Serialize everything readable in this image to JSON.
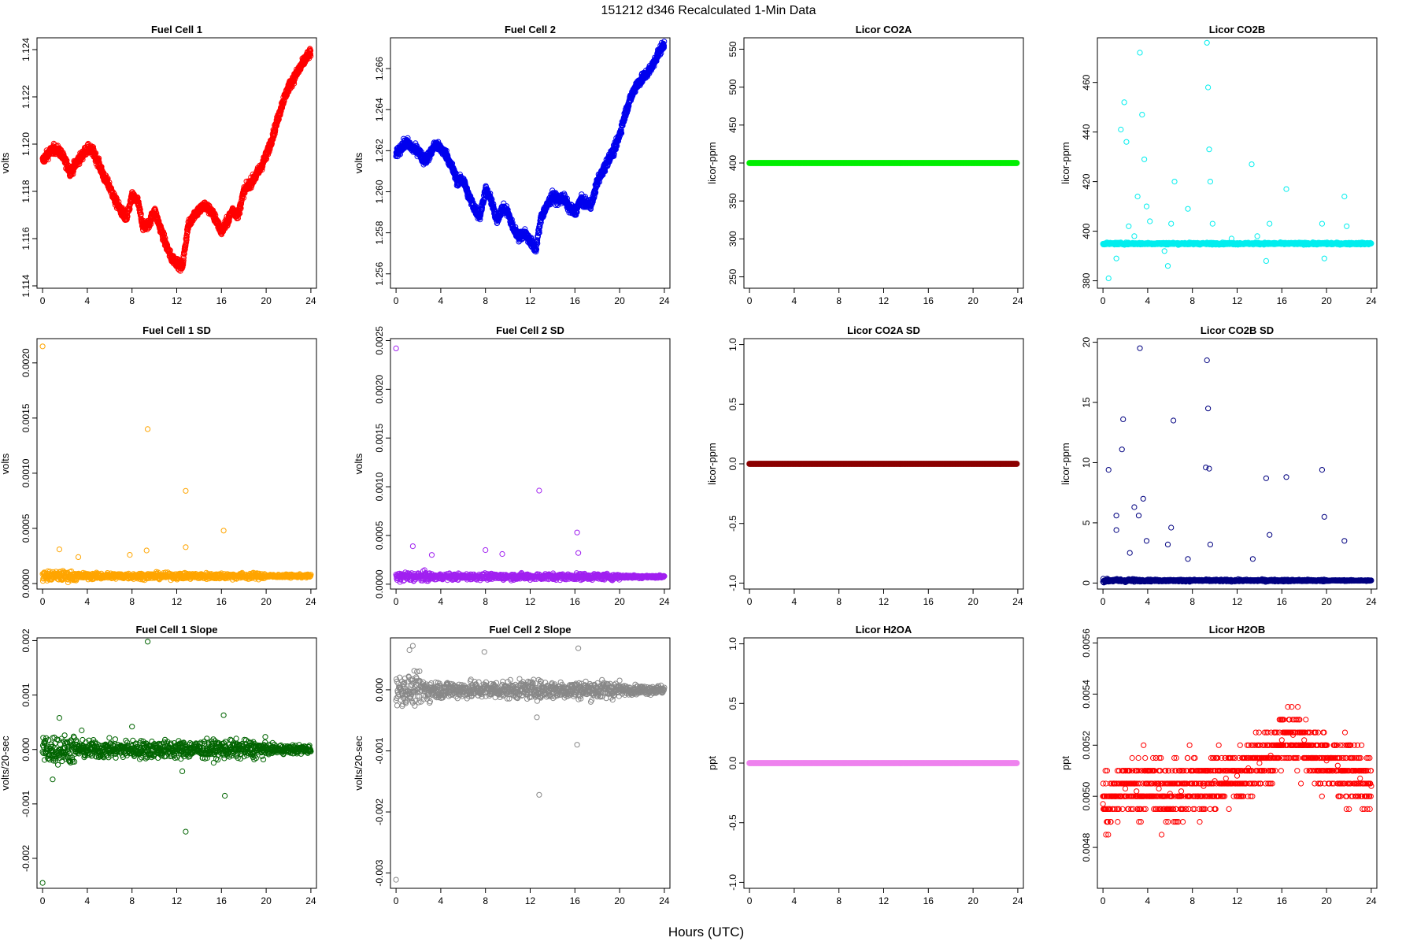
{
  "figure": {
    "title": "151212   d346   Recalculated 1-Min Data",
    "xlabel": "Hours (UTC)"
  },
  "chart_data": [
    {
      "type": "scatter",
      "title": "Fuel Cell 1",
      "ylabel": "volts",
      "color": "#ff0000",
      "xlim": [
        -0.5,
        24.5
      ],
      "xticks": [
        0,
        4,
        8,
        12,
        16,
        20,
        24
      ],
      "ylim": [
        1.1139,
        1.1245
      ],
      "yticks": [
        1.114,
        1.116,
        1.118,
        1.12,
        1.122,
        1.124
      ],
      "ytick_labels": [
        "1.114",
        "1.116",
        "1.118",
        "1.120",
        "1.122",
        "1.124"
      ],
      "x": [
        0,
        0.5,
        1,
        1.5,
        2,
        2.5,
        3,
        3.5,
        4,
        4.5,
        5,
        5.5,
        6,
        6.5,
        7,
        7.5,
        8,
        8.5,
        9,
        9.5,
        10,
        10.5,
        11,
        11.5,
        12,
        12.5,
        13,
        13.5,
        14,
        14.5,
        15,
        15.5,
        16,
        16.5,
        17,
        17.5,
        18,
        18.5,
        19,
        19.5,
        20,
        20.5,
        21,
        21.5,
        22,
        22.5,
        23,
        23.5,
        24
      ],
      "y": [
        1.1193,
        1.1196,
        1.1198,
        1.1197,
        1.1193,
        1.1188,
        1.1192,
        1.1195,
        1.1198,
        1.1197,
        1.1192,
        1.1186,
        1.1182,
        1.1176,
        1.1172,
        1.1168,
        1.1178,
        1.1176,
        1.1165,
        1.1166,
        1.1172,
        1.1165,
        1.1158,
        1.1152,
        1.115,
        1.1148,
        1.1165,
        1.117,
        1.1172,
        1.1174,
        1.1172,
        1.1168,
        1.1163,
        1.1167,
        1.1172,
        1.117,
        1.118,
        1.1183,
        1.1186,
        1.119,
        1.1195,
        1.1202,
        1.121,
        1.1218,
        1.1224,
        1.1228,
        1.1232,
        1.1236,
        1.1239
      ]
    },
    {
      "type": "scatter",
      "title": "Fuel Cell 2",
      "ylabel": "volts",
      "color": "#0000ee",
      "xlim": [
        -0.5,
        24.5
      ],
      "xticks": [
        0,
        4,
        8,
        12,
        16,
        20,
        24
      ],
      "ylim": [
        1.2553,
        1.2675
      ],
      "yticks": [
        1.256,
        1.258,
        1.26,
        1.262,
        1.264,
        1.266
      ],
      "ytick_labels": [
        "1.256",
        "1.258",
        "1.260",
        "1.262",
        "1.264",
        "1.266"
      ],
      "x": [
        0,
        0.5,
        1,
        1.5,
        2,
        2.5,
        3,
        3.5,
        4,
        4.5,
        5,
        5.5,
        6,
        6.5,
        7,
        7.5,
        8,
        8.5,
        9,
        9.5,
        10,
        10.5,
        11,
        11.5,
        12,
        12.5,
        13,
        13.5,
        14,
        14.5,
        15,
        15.5,
        16,
        16.5,
        17,
        17.5,
        18,
        18.5,
        19,
        19.5,
        20,
        20.5,
        21,
        21.5,
        22,
        22.5,
        23,
        23.5,
        24
      ],
      "y": [
        1.2618,
        1.2622,
        1.2624,
        1.2621,
        1.262,
        1.2615,
        1.2618,
        1.2623,
        1.2621,
        1.2618,
        1.2612,
        1.2605,
        1.2606,
        1.2598,
        1.2592,
        1.2588,
        1.2601,
        1.2596,
        1.2586,
        1.2592,
        1.259,
        1.2582,
        1.2578,
        1.258,
        1.2576,
        1.2572,
        1.2588,
        1.2593,
        1.2598,
        1.2596,
        1.2597,
        1.2592,
        1.259,
        1.2596,
        1.2594,
        1.2594,
        1.2605,
        1.261,
        1.2616,
        1.262,
        1.2628,
        1.2638,
        1.2646,
        1.2652,
        1.2655,
        1.2658,
        1.2662,
        1.2668,
        1.2672
      ]
    },
    {
      "type": "scatter",
      "title": "Licor CO2A",
      "ylabel": "licor-ppm",
      "color": "#00ee00",
      "xlim": [
        -0.5,
        24.5
      ],
      "xticks": [
        0,
        4,
        8,
        12,
        16,
        20,
        24
      ],
      "ylim": [
        235,
        565
      ],
      "yticks": [
        250,
        300,
        350,
        400,
        450,
        500,
        550
      ],
      "x": [
        0,
        24
      ],
      "y": [
        400,
        400
      ]
    },
    {
      "type": "scatter",
      "title": "Licor CO2B",
      "ylabel": "licor-ppm",
      "color": "#00eeee",
      "xlim": [
        -0.5,
        24.5
      ],
      "xticks": [
        0,
        4,
        8,
        12,
        16,
        20,
        24
      ],
      "ylim": [
        377,
        478
      ],
      "yticks": [
        380,
        400,
        420,
        440,
        460
      ],
      "baseline": 395,
      "x": [
        0.5,
        1.2,
        1.6,
        1.9,
        2.1,
        2.3,
        2.8,
        3.1,
        3.3,
        3.5,
        3.7,
        3.9,
        4.2,
        5.5,
        5.8,
        6.1,
        6.4,
        7.6,
        9.3,
        9.4,
        9.5,
        9.6,
        9.8,
        10.5,
        11.5,
        13.3,
        13.8,
        14.6,
        14.9,
        16.4,
        19.6,
        19.8,
        21.6,
        21.8
      ],
      "y": [
        381,
        389,
        441,
        452,
        436,
        402,
        398,
        414,
        472,
        447,
        429,
        410,
        404,
        392,
        386,
        403,
        420,
        409,
        476,
        458,
        433,
        420,
        403,
        395,
        397,
        427,
        398,
        388,
        403,
        417,
        403,
        389,
        414,
        402
      ]
    },
    {
      "type": "scatter",
      "title": "Fuel Cell 1 SD",
      "ylabel": "volts",
      "color": "#ffa500",
      "xlim": [
        -0.5,
        24.5
      ],
      "xticks": [
        0,
        4,
        8,
        12,
        16,
        20,
        24
      ],
      "ylim": [
        -5e-05,
        0.00222
      ],
      "yticks": [
        0,
        0.0005,
        0.001,
        0.0015,
        0.002
      ],
      "ytick_labels": [
        "0.0000",
        "0.0005",
        "0.0010",
        "0.0015",
        "0.0020"
      ],
      "x": [
        0,
        9.4,
        12.8,
        16.2,
        12.8,
        1.5,
        7.8,
        9.3,
        3.2
      ],
      "y": [
        0.00215,
        0.0014,
        0.00084,
        0.00048,
        0.00033,
        0.00031,
        0.00026,
        0.0003,
        0.00024
      ]
    },
    {
      "type": "scatter",
      "title": "Fuel Cell 2 SD",
      "ylabel": "volts",
      "color": "#a020f0",
      "xlim": [
        -0.5,
        24.5
      ],
      "xticks": [
        0,
        4,
        8,
        12,
        16,
        20,
        24
      ],
      "ylim": [
        -5e-05,
        0.00252
      ],
      "yticks": [
        0,
        0.0005,
        0.001,
        0.0015,
        0.002,
        0.0025
      ],
      "ytick_labels": [
        "0.0000",
        "0.0005",
        "0.0010",
        "0.0015",
        "0.0020",
        "0.0025"
      ],
      "x": [
        0,
        12.8,
        16.2,
        1.5,
        8.0,
        3.2,
        9.5,
        16.3
      ],
      "y": [
        0.00242,
        0.00096,
        0.00053,
        0.00039,
        0.00035,
        0.0003,
        0.00031,
        0.00032
      ]
    },
    {
      "type": "scatter",
      "title": "Licor CO2A SD",
      "ylabel": "licor-ppm",
      "color": "#8b0000",
      "xlim": [
        -0.5,
        24.5
      ],
      "xticks": [
        0,
        4,
        8,
        12,
        16,
        20,
        24
      ],
      "ylim": [
        -1.05,
        1.05
      ],
      "yticks": [
        -1.0,
        -0.5,
        0.0,
        0.5,
        1.0
      ],
      "ytick_labels": [
        "-1.0",
        "-0.5",
        "0.0",
        "0.5",
        "1.0"
      ],
      "x": [
        0,
        24
      ],
      "y": [
        0,
        0
      ]
    },
    {
      "type": "scatter",
      "title": "Licor CO2B SD",
      "ylabel": "licor-ppm",
      "color": "#000080",
      "xlim": [
        -0.5,
        24.5
      ],
      "xticks": [
        0,
        4,
        8,
        12,
        16,
        20,
        24
      ],
      "ylim": [
        -0.5,
        20.3
      ],
      "yticks": [
        0,
        5,
        10,
        15,
        20
      ],
      "x": [
        3.3,
        9.3,
        9.4,
        1.8,
        1.7,
        6.3,
        0.5,
        1.2,
        9.5,
        19.6,
        16.4,
        14.6,
        9.2,
        2.8,
        3.6,
        3.2,
        5.8,
        19.8,
        21.6,
        14.9,
        6.1,
        13.4,
        2.4,
        1.2,
        3.9,
        9.6,
        7.6
      ],
      "y": [
        19.5,
        18.5,
        14.5,
        13.6,
        11.1,
        13.5,
        9.4,
        5.6,
        9.5,
        9.4,
        8.8,
        8.7,
        9.6,
        6.3,
        7.0,
        5.6,
        3.2,
        5.5,
        3.5,
        4.0,
        4.6,
        2.0,
        2.5,
        4.4,
        3.5,
        3.2,
        2.0
      ]
    },
    {
      "type": "scatter",
      "title": "Fuel Cell 1 Slope",
      "ylabel": "volts/20-sec",
      "color": "#006400",
      "xlim": [
        -0.5,
        24.5
      ],
      "xticks": [
        0,
        4,
        8,
        12,
        16,
        20,
        24
      ],
      "ylim": [
        -0.00255,
        0.00205
      ],
      "yticks": [
        -0.002,
        -0.001,
        0,
        0.001,
        0.002
      ],
      "ytick_labels": [
        "-0.002",
        "-0.001",
        "0.000",
        "0.001",
        "0.002"
      ],
      "x": [
        0,
        9.4,
        12.8,
        16.3,
        16.2,
        1.5,
        0.9,
        3.5,
        8.0,
        12.5
      ],
      "y": [
        -0.00245,
        0.00198,
        -0.00151,
        -0.00085,
        0.00063,
        0.00058,
        -0.00055,
        0.00035,
        0.00042,
        -0.0004
      ]
    },
    {
      "type": "scatter",
      "title": "Fuel Cell 2 Slope",
      "ylabel": "volts/20-sec",
      "color": "#888888",
      "xlim": [
        -0.5,
        24.5
      ],
      "xticks": [
        0,
        4,
        8,
        12,
        16,
        20,
        24
      ],
      "ylim": [
        -0.00325,
        0.00085
      ],
      "yticks": [
        -0.003,
        -0.002,
        -0.001,
        0
      ],
      "ytick_labels": [
        "-0.003",
        "-0.002",
        "-0.001",
        "0.000"
      ],
      "x": [
        0,
        12.8,
        16.2,
        16.3,
        1.5,
        1.2,
        7.9,
        12.6
      ],
      "y": [
        -0.00311,
        -0.00172,
        -0.0009,
        0.00068,
        0.00072,
        0.00065,
        0.00062,
        -0.00045
      ]
    },
    {
      "type": "scatter",
      "title": "Licor H2OA",
      "ylabel": "ppt",
      "color": "#ee82ee",
      "xlim": [
        -0.5,
        24.5
      ],
      "xticks": [
        0,
        4,
        8,
        12,
        16,
        20,
        24
      ],
      "ylim": [
        -1.05,
        1.05
      ],
      "yticks": [
        -1.0,
        -0.5,
        0.0,
        0.5,
        1.0
      ],
      "ytick_labels": [
        "-1.0",
        "-0.5",
        "0.0",
        "0.5",
        "1.0"
      ],
      "x": [
        0,
        24
      ],
      "y": [
        0,
        0
      ]
    },
    {
      "type": "scatter",
      "title": "Licor H2OB",
      "ylabel": "ppt",
      "color": "#ff0000",
      "xlim": [
        -0.5,
        24.5
      ],
      "xticks": [
        0,
        4,
        8,
        12,
        16,
        20,
        24
      ],
      "ylim": [
        0.00464,
        0.00562
      ],
      "yticks": [
        0.0048,
        0.005,
        0.0052,
        0.0054,
        0.0056
      ],
      "ytick_labels": [
        "0.0048",
        "0.0050",
        "0.0052",
        "0.0054",
        "0.0056"
      ],
      "x": [
        0,
        1,
        2,
        3,
        4,
        5,
        6,
        7,
        8,
        9,
        10,
        11,
        12,
        13,
        14,
        15,
        16,
        17,
        18,
        19,
        20,
        21,
        22,
        23,
        24
      ],
      "y": [
        0.00497,
        0.005,
        0.00503,
        0.00502,
        0.00505,
        0.00503,
        0.00501,
        0.00502,
        0.00505,
        0.00504,
        0.00506,
        0.00507,
        0.00508,
        0.00511,
        0.00513,
        0.00516,
        0.00522,
        0.00524,
        0.00522,
        0.00515,
        0.00514,
        0.00512,
        0.0051,
        0.00507,
        0.00504
      ],
      "spread": 0.0002
    }
  ]
}
